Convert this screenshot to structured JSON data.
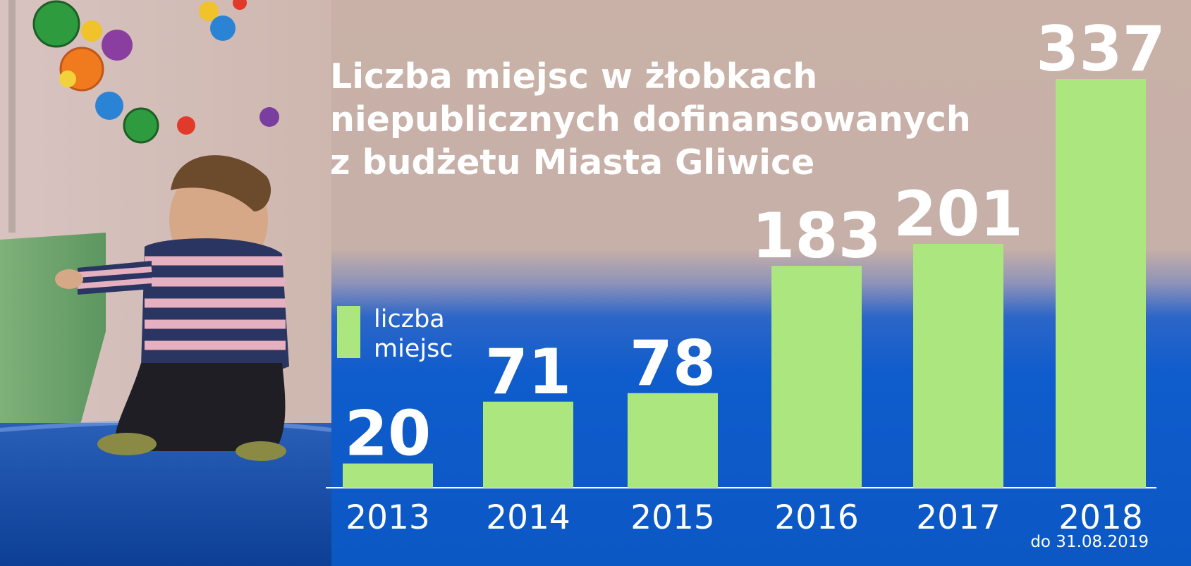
{
  "title_lines": [
    "Liczba miejsc w żłobkach",
    "niepublicznych dofinansowanych",
    "z budżetu Miasta Gliwice"
  ],
  "legend_lines": [
    "liczba",
    "miejsc"
  ],
  "footnote": "do 31.08.2019",
  "colors": {
    "bar": "#abe67f",
    "text": "#ffffff",
    "blue": "#0b57c4",
    "beige": "#c9b1a7"
  },
  "chart_data": {
    "type": "bar",
    "title": "Liczba miejsc w żłobkach niepublicznych dofinansowanych z budżetu Miasta Gliwice",
    "categories": [
      "2013",
      "2014",
      "2015",
      "2016",
      "2017",
      "2018"
    ],
    "series": [
      {
        "name": "liczba miejsc",
        "values": [
          20,
          71,
          78,
          183,
          201,
          337
        ]
      }
    ],
    "value_labels": [
      "20",
      "71",
      "78",
      "183",
      "201",
      "337"
    ],
    "xlabel": "",
    "ylabel": "",
    "ylim": [
      0,
      337
    ],
    "grid": false,
    "legend": "left"
  }
}
